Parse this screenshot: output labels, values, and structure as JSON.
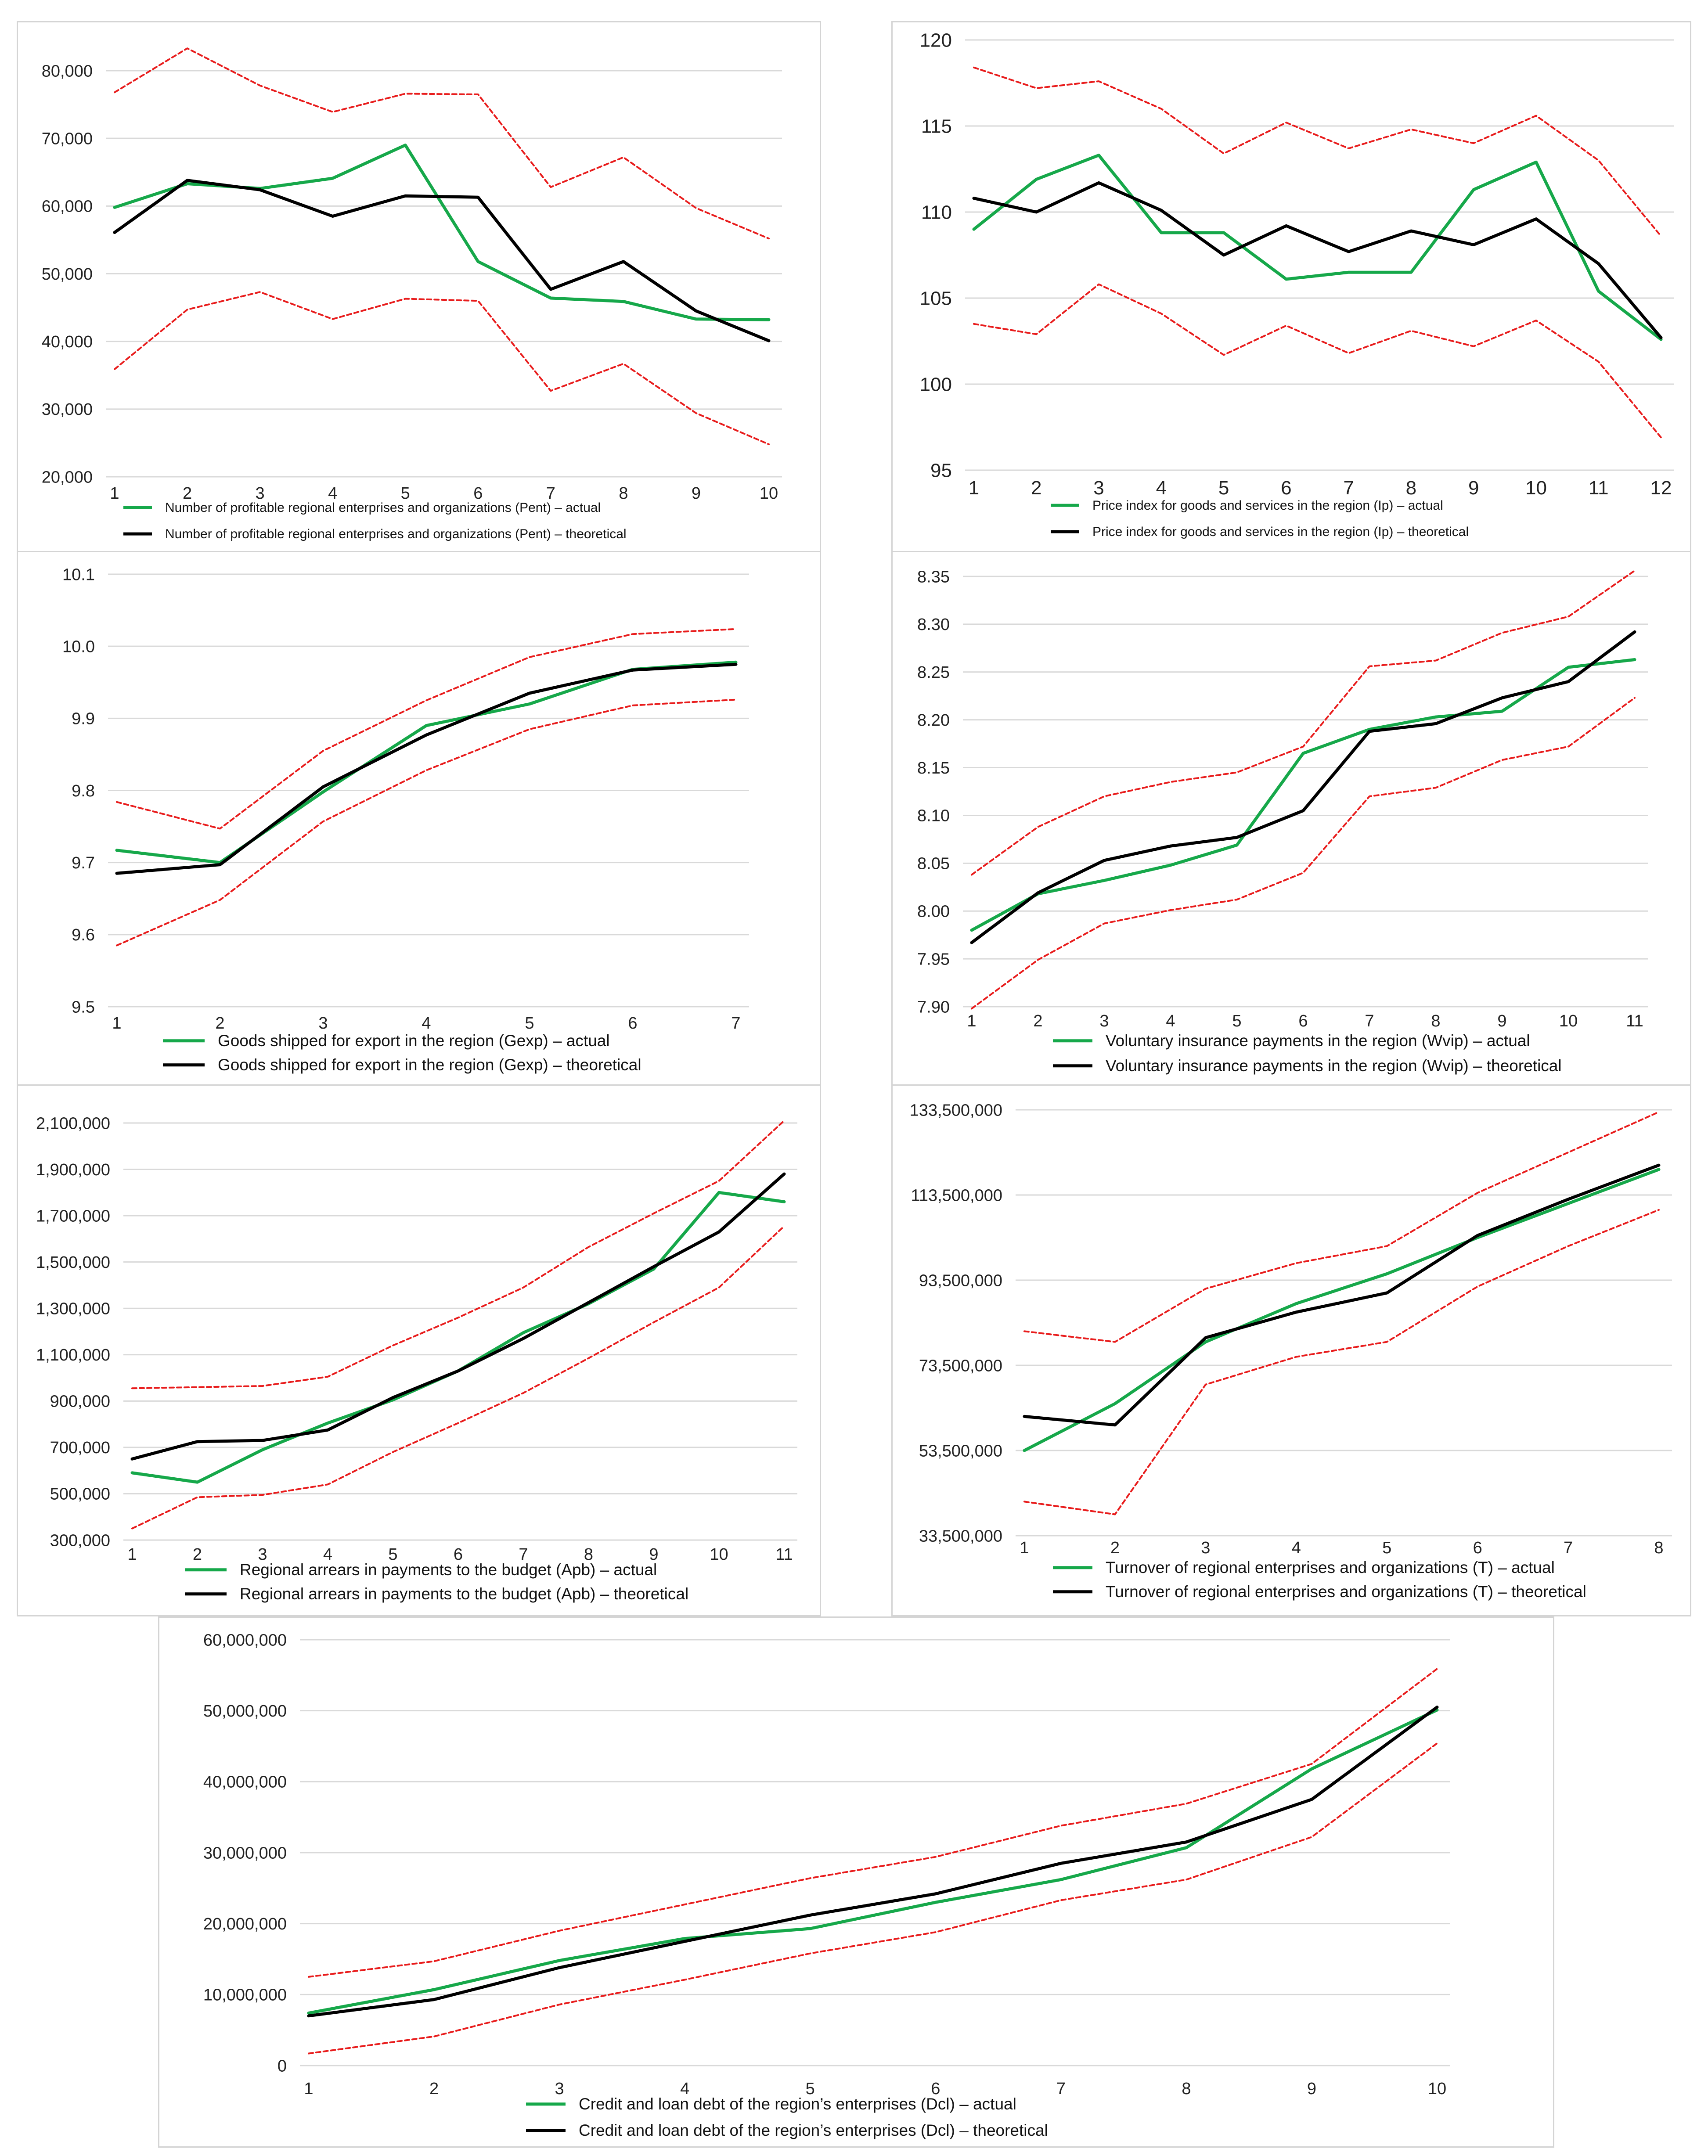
{
  "colors": {
    "actual": "#16a84a",
    "theoretical": "#000000",
    "bounds": "#e81c1c",
    "grid": "#d9d9d9",
    "frame": "#d4d4d4"
  },
  "chart_data": [
    {
      "type": "line",
      "x": [
        1,
        2,
        3,
        4,
        5,
        6,
        7,
        8,
        9,
        10
      ],
      "ylim": [
        20000,
        80000
      ],
      "yticks": [
        "20,000",
        "30,000",
        "40,000",
        "50,000",
        "60,000",
        "70,000",
        "80,000"
      ],
      "ytick_values": [
        20000,
        30000,
        40000,
        50000,
        60000,
        70000,
        80000
      ],
      "grid": true,
      "legend_position": "bottom",
      "series": [
        {
          "name": "Number of profitable regional enterprises and organizations (Pent) – actual",
          "role": "actual",
          "values": [
            59800,
            63300,
            62600,
            64100,
            69000,
            51800,
            46400,
            45900,
            43300,
            43200
          ]
        },
        {
          "name": "Number of profitable regional enterprises and organizations (Pent) – theoretical",
          "role": "theoretical",
          "values": [
            56100,
            63800,
            62400,
            58500,
            61500,
            61300,
            47700,
            51800,
            44500,
            40100
          ]
        },
        {
          "role": "upper",
          "values": [
            76800,
            83300,
            77800,
            73900,
            76600,
            76500,
            62800,
            67200,
            59700,
            55200
          ]
        },
        {
          "role": "lower",
          "values": [
            35900,
            44700,
            47300,
            43300,
            46300,
            46000,
            32700,
            36700,
            29400,
            24800
          ]
        }
      ]
    },
    {
      "type": "line",
      "x": [
        1,
        2,
        3,
        4,
        5,
        6,
        7,
        8,
        9,
        10,
        11,
        12
      ],
      "ylim": [
        95,
        120
      ],
      "yticks": [
        "95",
        "100",
        "105",
        "110",
        "115",
        "120"
      ],
      "ytick_values": [
        95,
        100,
        105,
        110,
        115,
        120
      ],
      "grid": true,
      "legend_position": "bottom",
      "series": [
        {
          "name": "Price index for goods and services in the region (Ip) – actual",
          "role": "actual",
          "values": [
            109.0,
            111.9,
            113.3,
            108.8,
            108.8,
            106.1,
            106.5,
            106.5,
            111.3,
            112.9,
            105.4,
            102.6
          ]
        },
        {
          "name": "Price index for goods and services in the region (Ip) – theoretical",
          "role": "theoretical",
          "values": [
            110.8,
            110.0,
            111.7,
            110.1,
            107.5,
            109.2,
            107.7,
            108.9,
            108.1,
            109.6,
            107.0,
            102.7
          ]
        },
        {
          "role": "upper",
          "values": [
            118.4,
            117.2,
            117.6,
            116.0,
            113.4,
            115.2,
            113.7,
            114.8,
            114.0,
            115.6,
            113.0,
            108.6
          ]
        },
        {
          "role": "lower",
          "values": [
            103.5,
            102.9,
            105.8,
            104.1,
            101.7,
            103.4,
            101.8,
            103.1,
            102.2,
            103.7,
            101.3,
            96.9
          ]
        }
      ]
    },
    {
      "type": "line",
      "x": [
        1,
        2,
        3,
        4,
        5,
        6,
        7
      ],
      "ylim": [
        9.5,
        10.1
      ],
      "yticks": [
        "9.5",
        "9.6",
        "9.7",
        "9.8",
        "9.9",
        "10.0",
        "10.1"
      ],
      "ytick_values": [
        9.5,
        9.6,
        9.7,
        9.8,
        9.9,
        10.0,
        10.1
      ],
      "grid": true,
      "legend_position": "bottom",
      "series": [
        {
          "name": "Goods shipped for export in the region (Gexp) – actual",
          "role": "actual",
          "values": [
            9.717,
            9.7,
            9.798,
            9.89,
            9.92,
            9.968,
            9.978
          ]
        },
        {
          "name": "Goods shipped for export in the region (Gexp) – theoretical",
          "role": "theoretical",
          "values": [
            9.685,
            9.697,
            9.805,
            9.877,
            9.935,
            9.967,
            9.975
          ]
        },
        {
          "role": "upper",
          "values": [
            9.784,
            9.747,
            9.855,
            9.925,
            9.985,
            10.017,
            10.024
          ]
        },
        {
          "role": "lower",
          "values": [
            9.585,
            9.648,
            9.757,
            9.828,
            9.885,
            9.918,
            9.926
          ]
        }
      ]
    },
    {
      "type": "line",
      "x": [
        1,
        2,
        3,
        4,
        5,
        6,
        7,
        8,
        9,
        10,
        11
      ],
      "ylim": [
        7.9,
        8.35
      ],
      "yticks": [
        "7.90",
        "7.95",
        "8.00",
        "8.05",
        "8.10",
        "8.15",
        "8.20",
        "8.25",
        "8.30",
        "8.35"
      ],
      "ytick_values": [
        7.9,
        7.95,
        8.0,
        8.05,
        8.1,
        8.15,
        8.2,
        8.25,
        8.3,
        8.35
      ],
      "grid": true,
      "legend_position": "bottom",
      "series": [
        {
          "name": "Voluntary insurance payments in the region (Wvip) – actual",
          "role": "actual",
          "values": [
            7.98,
            8.018,
            8.032,
            8.048,
            8.069,
            8.165,
            8.19,
            8.203,
            8.209,
            8.255,
            8.263
          ]
        },
        {
          "name": "Voluntary insurance payments in the region (Wvip) – theoretical",
          "role": "theoretical",
          "values": [
            7.967,
            8.019,
            8.053,
            8.068,
            8.077,
            8.105,
            8.188,
            8.196,
            8.223,
            8.24,
            8.292
          ]
        },
        {
          "role": "upper",
          "values": [
            8.038,
            8.088,
            8.12,
            8.135,
            8.145,
            8.172,
            8.256,
            8.262,
            8.291,
            8.308,
            8.356
          ]
        },
        {
          "role": "lower",
          "values": [
            7.898,
            7.949,
            7.987,
            8.001,
            8.012,
            8.04,
            8.12,
            8.129,
            8.158,
            8.172,
            8.223
          ]
        }
      ]
    },
    {
      "type": "line",
      "x": [
        1,
        2,
        3,
        4,
        5,
        6,
        7,
        8,
        9,
        10,
        11
      ],
      "ylim": [
        300000,
        2100000
      ],
      "yticks": [
        "300,000",
        "500,000",
        "700,000",
        "900,000",
        "1,100,000",
        "1,300,000",
        "1,500,000",
        "1,700,000",
        "1,900,000",
        "2,100,000"
      ],
      "ytick_values": [
        300000,
        500000,
        700000,
        900000,
        1100000,
        1300000,
        1500000,
        1700000,
        1900000,
        2100000
      ],
      "grid": true,
      "legend_position": "bottom",
      "series": [
        {
          "name": "Regional arrears in payments to the budget (Apb) – actual",
          "role": "actual",
          "values": [
            590000,
            550000,
            690000,
            805000,
            905000,
            1030000,
            1195000,
            1320000,
            1470000,
            1800000,
            1760000
          ]
        },
        {
          "name": "Regional arrears in payments to the budget (Apb) – theoretical",
          "role": "theoretical",
          "values": [
            650000,
            725000,
            730000,
            775000,
            915000,
            1030000,
            1170000,
            1325000,
            1480000,
            1630000,
            1880000
          ]
        },
        {
          "role": "upper",
          "values": [
            955000,
            960000,
            965000,
            1005000,
            1140000,
            1260000,
            1390000,
            1565000,
            1710000,
            1850000,
            2110000
          ]
        },
        {
          "role": "lower",
          "values": [
            350000,
            485000,
            495000,
            540000,
            680000,
            805000,
            935000,
            1085000,
            1240000,
            1390000,
            1655000
          ]
        }
      ]
    },
    {
      "type": "line",
      "x": [
        1,
        2,
        3,
        4,
        5,
        6,
        7,
        8
      ],
      "ylim": [
        33500000,
        133500000
      ],
      "yticks": [
        "33,500,000",
        "53,500,000",
        "73,500,000",
        "93,500,000",
        "113,500,000",
        "133,500,000"
      ],
      "ytick_values": [
        33500000,
        53500000,
        73500000,
        93500000,
        113500000,
        133500000
      ],
      "grid": true,
      "legend_position": "bottom",
      "series": [
        {
          "name": "Turnover of regional enterprises and organizations (T) – actual",
          "role": "actual",
          "values": [
            53500000,
            64500000,
            79000000,
            88000000,
            95000000,
            103500000,
            111500000,
            119500000
          ]
        },
        {
          "name": "Turnover of regional enterprises and organizations (T) – theoretical",
          "role": "theoretical",
          "values": [
            61500000,
            59500000,
            80000000,
            86000000,
            90500000,
            104000000,
            112500000,
            120500000
          ]
        },
        {
          "role": "upper",
          "values": [
            81500000,
            79000000,
            91500000,
            97500000,
            101500000,
            114000000,
            123500000,
            133000000
          ]
        },
        {
          "role": "lower",
          "values": [
            41500000,
            38500000,
            69000000,
            75500000,
            79000000,
            92000000,
            101500000,
            110000000
          ]
        }
      ]
    },
    {
      "type": "line",
      "x": [
        1,
        2,
        3,
        4,
        5,
        6,
        7,
        8,
        9,
        10
      ],
      "ylim": [
        0,
        60000000
      ],
      "yticks": [
        "0",
        "10,000,000",
        "20,000,000",
        "30,000,000",
        "40,000,000",
        "50,000,000",
        "60,000,000"
      ],
      "ytick_values": [
        0,
        10000000,
        20000000,
        30000000,
        40000000,
        50000000,
        60000000
      ],
      "grid": true,
      "legend_position": "bottom",
      "series": [
        {
          "name": "Credit and loan debt of the region’s enterprises (Dcl) – actual",
          "role": "actual",
          "values": [
            7400000,
            10700000,
            14800000,
            17900000,
            19300000,
            23000000,
            26200000,
            30700000,
            41800000,
            50100000
          ]
        },
        {
          "name": "Credit and loan debt of the region’s enterprises (Dcl) – theoretical",
          "role": "theoretical",
          "values": [
            7000000,
            9300000,
            13800000,
            17500000,
            21200000,
            24200000,
            28500000,
            31500000,
            37500000,
            50500000
          ]
        },
        {
          "role": "upper",
          "values": [
            12500000,
            14700000,
            19000000,
            22700000,
            26400000,
            29400000,
            33800000,
            36900000,
            42500000,
            55900000
          ]
        },
        {
          "role": "lower",
          "values": [
            1700000,
            4100000,
            8600000,
            12100000,
            15800000,
            18800000,
            23300000,
            26200000,
            32200000,
            45400000
          ]
        }
      ]
    }
  ]
}
